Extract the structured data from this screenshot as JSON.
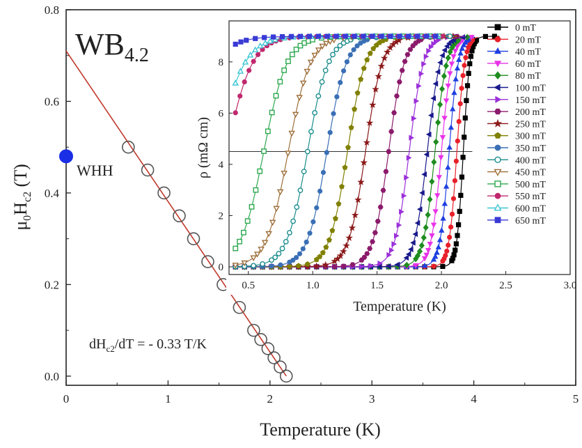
{
  "chart_data": [
    {
      "type": "scatter",
      "title": "WB",
      "title_subscript": "4.2",
      "xlabel": "Temperature (K)",
      "ylabel_main": "μ",
      "ylabel_sub1": "0",
      "ylabel_mid": "H",
      "ylabel_sub2": "c2",
      "ylabel_tail": " (T)",
      "xlim": [
        0,
        5
      ],
      "ylim": [
        -0.02,
        0.8
      ],
      "xticks": [
        "0",
        "1",
        "2",
        "3",
        "4",
        "5"
      ],
      "yticks": [
        "0.0",
        "0.2",
        "0.4",
        "0.6",
        "0.8"
      ],
      "series": [
        {
          "marker": "open-circle",
          "color": "#555555",
          "points": [
            [
              0.61,
              0.5
            ],
            [
              0.8,
              0.45
            ],
            [
              0.96,
              0.4
            ],
            [
              1.11,
              0.35
            ],
            [
              1.25,
              0.3
            ],
            [
              1.39,
              0.25
            ],
            [
              1.54,
              0.2
            ],
            [
              1.7,
              0.15
            ],
            [
              1.84,
              0.1
            ],
            [
              1.91,
              0.08
            ],
            [
              1.98,
              0.06
            ],
            [
              2.04,
              0.04
            ],
            [
              2.1,
              0.02
            ],
            [
              2.16,
              0.0
            ]
          ]
        },
        {
          "name": "WHH",
          "marker": "filled-circle",
          "color": "#1a2ee6",
          "points": [
            [
              0.0,
              0.48
            ]
          ]
        }
      ],
      "fit_line": {
        "x": [
          0,
          2.16
        ],
        "y": [
          0.71,
          0.0
        ],
        "color": "#c0392b"
      },
      "annotation": {
        "prefix": "dH",
        "sub": "c2",
        "suffix": "/dT = - 0.33 T/K"
      }
    },
    {
      "type": "line",
      "xlabel": "Temperature (K)",
      "ylabel_pre": "ρ (mΩ cm)",
      "xlim": [
        0.35,
        3.0
      ],
      "ylim": [
        -0.3,
        9.6
      ],
      "xticks": [
        "0.5",
        "1.0",
        "1.5",
        "2.0",
        "2.5",
        "3.0"
      ],
      "yticks": [
        "0",
        "2",
        "4",
        "6",
        "8"
      ],
      "rho_n": 9.0,
      "half_level": 4.5,
      "legend_position": "right",
      "series": [
        {
          "name": "0 mT",
          "color": "#000000",
          "marker": "square",
          "tc": 2.17,
          "width": 0.025
        },
        {
          "name": "20 mT",
          "color": "#e8202a",
          "marker": "circle",
          "tc": 2.12,
          "width": 0.03
        },
        {
          "name": "40 mT",
          "color": "#1f3fe0",
          "marker": "triangle-up",
          "tc": 2.06,
          "width": 0.035
        },
        {
          "name": "60 mT",
          "color": "#e832e8",
          "marker": "triangle-down",
          "tc": 2.0,
          "width": 0.04
        },
        {
          "name": "80 mT",
          "color": "#1e8c1e",
          "marker": "diamond",
          "tc": 1.95,
          "width": 0.045
        },
        {
          "name": "100 mT",
          "color": "#1a1a8c",
          "marker": "triangle-left",
          "tc": 1.89,
          "width": 0.05
        },
        {
          "name": "150 mT",
          "color": "#9b30d9",
          "marker": "triangle-right",
          "tc": 1.75,
          "width": 0.055
        },
        {
          "name": "200 mT",
          "color": "#8b1a6b",
          "marker": "hexagon",
          "tc": 1.59,
          "width": 0.06
        },
        {
          "name": "250 mT",
          "color": "#8b1a1a",
          "marker": "star",
          "tc": 1.41,
          "width": 0.065
        },
        {
          "name": "300 mT",
          "color": "#808000",
          "marker": "pentagon",
          "tc": 1.27,
          "width": 0.07
        },
        {
          "name": "350 mT",
          "color": "#3a6fb5",
          "marker": "circle",
          "tc": 1.11,
          "width": 0.075
        },
        {
          "name": "400 mT",
          "color": "#1a8c8c",
          "marker": "open-circle",
          "tc": 0.96,
          "width": 0.08
        },
        {
          "name": "450 mT",
          "color": "#9e6e3a",
          "marker": "open-triangle-down",
          "tc": 0.81,
          "width": 0.085
        },
        {
          "name": "500 mT",
          "color": "#2ea84f",
          "marker": "open-square",
          "tc": 0.62,
          "width": 0.09
        },
        {
          "name": "550 mT",
          "color": "#c0286e",
          "marker": "circle",
          "tc": 0.33,
          "width": 0.1
        },
        {
          "name": "600 mT",
          "color": "#3ec6d6",
          "marker": "open-triangle-up",
          "tc": 0.25,
          "width": 0.11
        },
        {
          "name": "650 mT",
          "color": "#3a3ad6",
          "marker": "square",
          "tc": 0.0,
          "width": 0.12
        }
      ]
    }
  ]
}
